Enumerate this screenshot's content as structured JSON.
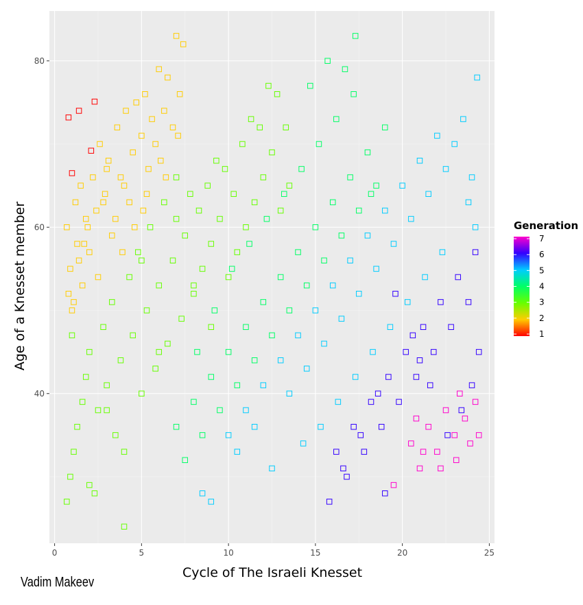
{
  "caption": "Vadim Makeev",
  "chart_data": {
    "type": "scatter",
    "title": "",
    "xlabel": "Cycle of The Israeli Knesset",
    "ylabel": "Age of a Knesset member",
    "xlim": [
      -0.3,
      25.3
    ],
    "ylim": [
      22,
      86
    ],
    "x_ticks": [
      0,
      5,
      10,
      15,
      20,
      25
    ],
    "y_ticks": [
      40,
      60,
      80
    ],
    "grid": true,
    "marker": "open-square",
    "legend": {
      "title": "Generation",
      "placement": "right",
      "ticks": [
        1,
        2,
        3,
        4,
        5,
        6,
        7
      ],
      "range": [
        1,
        7
      ],
      "colors": [
        "#ff0000",
        "#ffcc00",
        "#66ff00",
        "#00ff66",
        "#00ccff",
        "#3300ff",
        "#ff00cc"
      ]
    },
    "series": [
      {
        "generation": 1,
        "x": [
          0.8,
          1.0,
          1.4,
          2.1,
          2.3
        ],
        "y": [
          73.2,
          66.5,
          74.0,
          69.2,
          75.1
        ]
      },
      {
        "generation": 2,
        "x": [
          0.7,
          0.9,
          1.0,
          1.2,
          1.3,
          1.5,
          1.6,
          1.8,
          2.0,
          2.2,
          2.4,
          2.6,
          2.9,
          3.1,
          3.3,
          3.6,
          3.8,
          4.1,
          4.3,
          4.5,
          4.7,
          5.0,
          5.2,
          5.4,
          5.6,
          5.8,
          6.0,
          6.3,
          6.5,
          6.8,
          7.0,
          7.2,
          7.4,
          1.1,
          1.4,
          1.9,
          2.5,
          3.0,
          3.5,
          4.0,
          4.6,
          5.3,
          6.1,
          7.1,
          0.8,
          1.7,
          2.8,
          3.9,
          5.1,
          6.4
        ],
        "y": [
          60.0,
          55.0,
          50.0,
          63.0,
          58.0,
          65.0,
          53.0,
          61.0,
          57.0,
          66.0,
          62.0,
          70.0,
          64.0,
          68.0,
          59.0,
          72.0,
          66.0,
          74.0,
          63.0,
          69.0,
          75.0,
          71.0,
          76.0,
          67.0,
          73.0,
          70.0,
          79.0,
          74.0,
          78.0,
          72.0,
          83.0,
          76.0,
          82.0,
          51.0,
          56.0,
          60.0,
          54.0,
          67.0,
          61.0,
          65.0,
          60.0,
          64.0,
          68.0,
          71.0,
          52.0,
          58.0,
          63.0,
          57.0,
          62.0,
          66.0
        ]
      },
      {
        "generation": 3,
        "x": [
          0.7,
          0.9,
          1.1,
          1.3,
          1.6,
          1.8,
          2.0,
          2.3,
          2.5,
          2.8,
          3.0,
          3.3,
          3.5,
          3.8,
          4.0,
          4.3,
          4.5,
          4.8,
          5.0,
          5.3,
          5.5,
          5.8,
          6.0,
          6.3,
          6.5,
          6.8,
          7.0,
          7.3,
          7.5,
          7.8,
          8.0,
          8.3,
          8.5,
          8.8,
          9.0,
          9.3,
          9.5,
          9.8,
          10.0,
          10.3,
          10.5,
          10.8,
          11.0,
          11.3,
          11.5,
          11.8,
          12.0,
          12.3,
          12.5,
          12.8,
          13.0,
          13.3,
          13.5,
          4.0,
          1.0,
          2.0,
          3.0,
          5.0,
          6.0,
          7.0,
          8.0,
          9.0
        ],
        "y": [
          27.0,
          30.0,
          33.0,
          36.0,
          39.0,
          42.0,
          45.0,
          28.0,
          38.0,
          48.0,
          41.0,
          51.0,
          35.0,
          44.0,
          24.0,
          54.0,
          47.0,
          57.0,
          40.0,
          50.0,
          60.0,
          43.0,
          53.0,
          63.0,
          46.0,
          56.0,
          66.0,
          49.0,
          59.0,
          64.0,
          52.0,
          62.0,
          55.0,
          65.0,
          58.0,
          68.0,
          61.0,
          67.0,
          54.0,
          64.0,
          57.0,
          70.0,
          60.0,
          73.0,
          63.0,
          72.0,
          66.0,
          77.0,
          69.0,
          76.0,
          62.0,
          72.0,
          65.0,
          33.0,
          47.0,
          29.0,
          38.0,
          56.0,
          45.0,
          61.0,
          53.0,
          48.0
        ]
      },
      {
        "generation": 4,
        "x": [
          7.0,
          7.5,
          8.0,
          8.5,
          9.0,
          9.5,
          10.0,
          10.5,
          11.0,
          11.5,
          12.0,
          12.5,
          13.0,
          13.5,
          14.0,
          14.5,
          15.0,
          15.5,
          16.0,
          16.5,
          17.0,
          17.5,
          18.0,
          18.5,
          19.0,
          8.2,
          9.2,
          10.2,
          11.2,
          12.2,
          13.2,
          14.2,
          15.2,
          16.2,
          17.2,
          18.2,
          14.7,
          15.7,
          16.7,
          17.3
        ],
        "y": [
          36.0,
          32.0,
          39.0,
          35.0,
          42.0,
          38.0,
          45.0,
          41.0,
          48.0,
          44.0,
          51.0,
          47.0,
          54.0,
          50.0,
          57.0,
          53.0,
          60.0,
          56.0,
          63.0,
          59.0,
          66.0,
          62.0,
          69.0,
          65.0,
          72.0,
          45.0,
          50.0,
          55.0,
          58.0,
          61.0,
          64.0,
          67.0,
          70.0,
          73.0,
          76.0,
          64.0,
          77.0,
          80.0,
          79.0,
          83.0
        ]
      },
      {
        "generation": 5,
        "x": [
          8.5,
          9.0,
          10.0,
          10.5,
          11.0,
          11.5,
          12.0,
          12.5,
          13.0,
          13.5,
          14.0,
          14.5,
          15.0,
          15.5,
          16.0,
          16.5,
          17.0,
          17.5,
          18.0,
          18.5,
          19.0,
          19.5,
          20.0,
          20.5,
          21.0,
          21.5,
          22.0,
          22.5,
          23.0,
          23.5,
          24.0,
          24.3,
          24.2,
          23.8,
          22.3,
          21.3,
          20.3,
          19.3,
          18.3,
          17.3,
          16.3,
          15.3,
          14.3
        ],
        "y": [
          28.0,
          27.0,
          35.0,
          33.0,
          38.0,
          36.0,
          41.0,
          31.0,
          44.0,
          40.0,
          47.0,
          43.0,
          50.0,
          46.0,
          53.0,
          49.0,
          56.0,
          52.0,
          59.0,
          55.0,
          62.0,
          58.0,
          65.0,
          61.0,
          68.0,
          64.0,
          71.0,
          67.0,
          70.0,
          73.0,
          66.0,
          78.0,
          60.0,
          63.0,
          57.0,
          54.0,
          51.0,
          48.0,
          45.0,
          42.0,
          39.0,
          36.0,
          34.0
        ]
      },
      {
        "generation": 6,
        "x": [
          15.8,
          16.2,
          16.8,
          17.2,
          17.8,
          18.2,
          18.8,
          19.2,
          19.8,
          20.2,
          20.8,
          21.2,
          21.8,
          22.2,
          22.8,
          23.2,
          23.8,
          24.2,
          24.4,
          24.0,
          23.4,
          22.6,
          21.6,
          20.6,
          19.6,
          18.6,
          17.6,
          16.6,
          19.0,
          21.0
        ],
        "y": [
          27.0,
          33.0,
          30.0,
          36.0,
          33.0,
          39.0,
          36.0,
          42.0,
          39.0,
          45.0,
          42.0,
          48.0,
          45.0,
          51.0,
          48.0,
          54.0,
          51.0,
          57.0,
          45.0,
          41.0,
          38.0,
          35.0,
          41.0,
          47.0,
          52.0,
          40.0,
          35.0,
          31.0,
          28.0,
          44.0
        ]
      },
      {
        "generation": 7,
        "x": [
          19.5,
          20.5,
          21.0,
          21.5,
          22.0,
          22.5,
          23.0,
          23.3,
          23.6,
          23.9,
          24.2,
          24.4,
          23.1,
          22.2,
          21.2,
          20.8
        ],
        "y": [
          29.0,
          34.0,
          31.0,
          36.0,
          33.0,
          38.0,
          35.0,
          40.0,
          37.0,
          34.0,
          39.0,
          35.0,
          32.0,
          31.0,
          33.0,
          37.0
        ]
      }
    ]
  }
}
